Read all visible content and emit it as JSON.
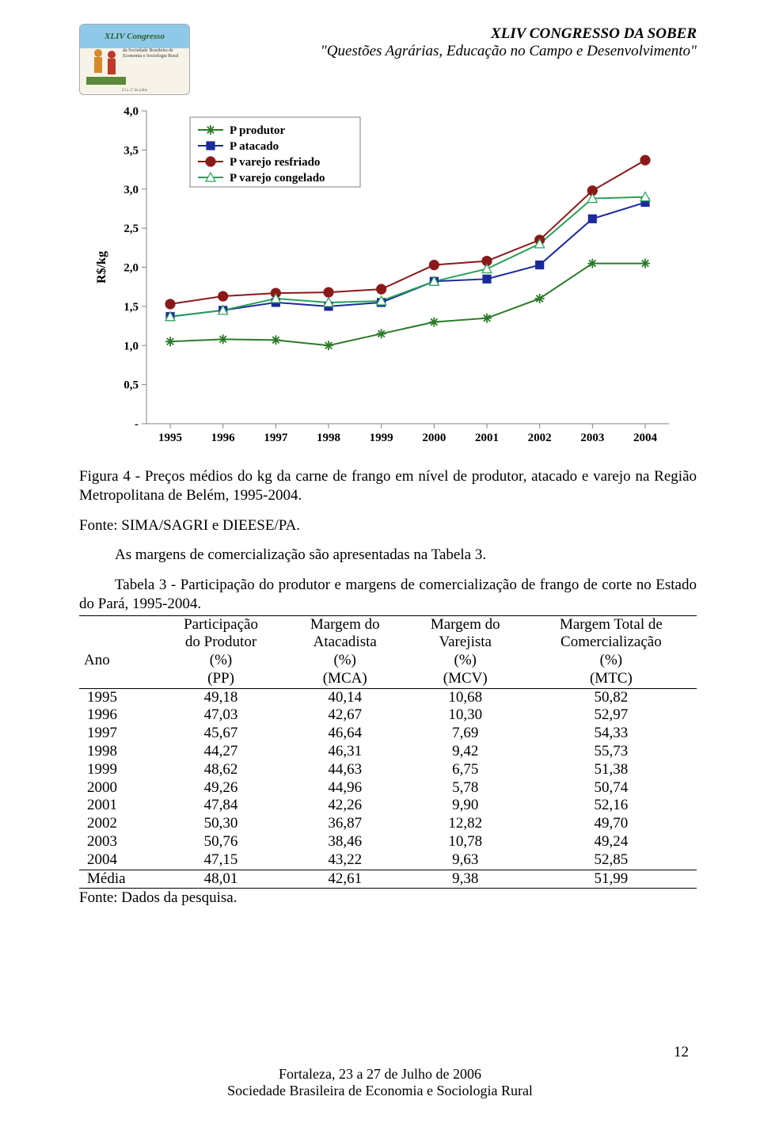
{
  "header": {
    "line1": "XLIV CONGRESSO DA SOBER",
    "line2": "\"Questões Agrárias, Educação no Campo e Desenvolvimento\"",
    "logo_title": "XLIV Congresso"
  },
  "chart": {
    "type": "line",
    "ylabel": "R$/kg",
    "ylim": [
      0,
      4.0
    ],
    "yticks": [
      "-",
      "0,5",
      "1,0",
      "1,5",
      "2,0",
      "2,5",
      "3,0",
      "3,5",
      "4,0"
    ],
    "xcategories": [
      "1995",
      "1996",
      "1997",
      "1998",
      "1999",
      "2000",
      "2001",
      "2002",
      "2003",
      "2004"
    ],
    "series": [
      {
        "name": "P produtor",
        "marker": "asterisk",
        "color": "#2a7a2a",
        "values": [
          1.05,
          1.08,
          1.07,
          1.0,
          1.15,
          1.3,
          1.35,
          1.6,
          2.05,
          2.05
        ]
      },
      {
        "name": "P atacado",
        "marker": "square",
        "color": "#1a2a9a",
        "values": [
          1.37,
          1.45,
          1.55,
          1.5,
          1.55,
          1.82,
          1.85,
          2.03,
          2.62,
          2.83
        ]
      },
      {
        "name": "P varejo resfriado",
        "marker": "circle",
        "color": "#8a1a1a",
        "values": [
          1.53,
          1.63,
          1.67,
          1.68,
          1.72,
          2.03,
          2.08,
          2.35,
          2.98,
          3.37
        ]
      },
      {
        "name": "P varejo congelado",
        "marker": "triangle",
        "color": "#2aa05a",
        "values": [
          1.37,
          1.45,
          1.6,
          1.55,
          1.57,
          1.82,
          1.98,
          2.3,
          2.88,
          2.9
        ]
      }
    ],
    "legend_order": [
      "P produtor",
      "P atacado",
      "P varejo resfriado",
      "P varejo congelado"
    ],
    "background_color": "#ffffff",
    "grid_color": "#808080",
    "axis_color": "#808080",
    "font_size_ticks": 15,
    "line_width": 2
  },
  "captions": {
    "figure": "Figura 4 - Preços médios do kg da carne de frango em nível de produtor, atacado e varejo na Região Metropolitana de Belém, 1995-2004.",
    "figure_source": "Fonte: SIMA/SAGRI e DIEESE/PA.",
    "para1": "As margens de comercialização são apresentadas na Tabela 3.",
    "table_title": "Tabela 3 - Participação do produtor e margens de comercialização de frango de corte no Estado do Pará, 1995-2004.",
    "table_source": "Fonte: Dados da pesquisa."
  },
  "table": {
    "columns": [
      {
        "h1": "",
        "h2": "",
        "h3": "Ano",
        "h4": ""
      },
      {
        "h1": "Participação",
        "h2": "do Produtor",
        "h3": "(%)",
        "h4": "(PP)"
      },
      {
        "h1": "Margem do",
        "h2": "Atacadista",
        "h3": "(%)",
        "h4": "(MCA)"
      },
      {
        "h1": "Margem do",
        "h2": "Varejista",
        "h3": "(%)",
        "h4": "(MCV)"
      },
      {
        "h1": "Margem Total de",
        "h2": "Comercialização",
        "h3": "(%)",
        "h4": "(MTC)"
      }
    ],
    "rows": [
      [
        "1995",
        "49,18",
        "40,14",
        "10,68",
        "50,82"
      ],
      [
        "1996",
        "47,03",
        "42,67",
        "10,30",
        "52,97"
      ],
      [
        "1997",
        "45,67",
        "46,64",
        "7,69",
        "54,33"
      ],
      [
        "1998",
        "44,27",
        "46,31",
        "9,42",
        "55,73"
      ],
      [
        "1999",
        "48,62",
        "44,63",
        "6,75",
        "51,38"
      ],
      [
        "2000",
        "49,26",
        "44,96",
        "5,78",
        "50,74"
      ],
      [
        "2001",
        "47,84",
        "42,26",
        "9,90",
        "52,16"
      ],
      [
        "2002",
        "50,30",
        "36,87",
        "12,82",
        "49,70"
      ],
      [
        "2003",
        "50,76",
        "38,46",
        "10,78",
        "49,24"
      ],
      [
        "2004",
        "47,15",
        "43,22",
        "9,63",
        "52,85"
      ]
    ],
    "summary": [
      "Média",
      "48,01",
      "42,61",
      "9,38",
      "51,99"
    ]
  },
  "footer": {
    "line1": "Fortaleza, 23 a 27 de Julho de 2006",
    "line2": "Sociedade Brasileira de Economia e Sociologia Rural",
    "page": "12"
  }
}
